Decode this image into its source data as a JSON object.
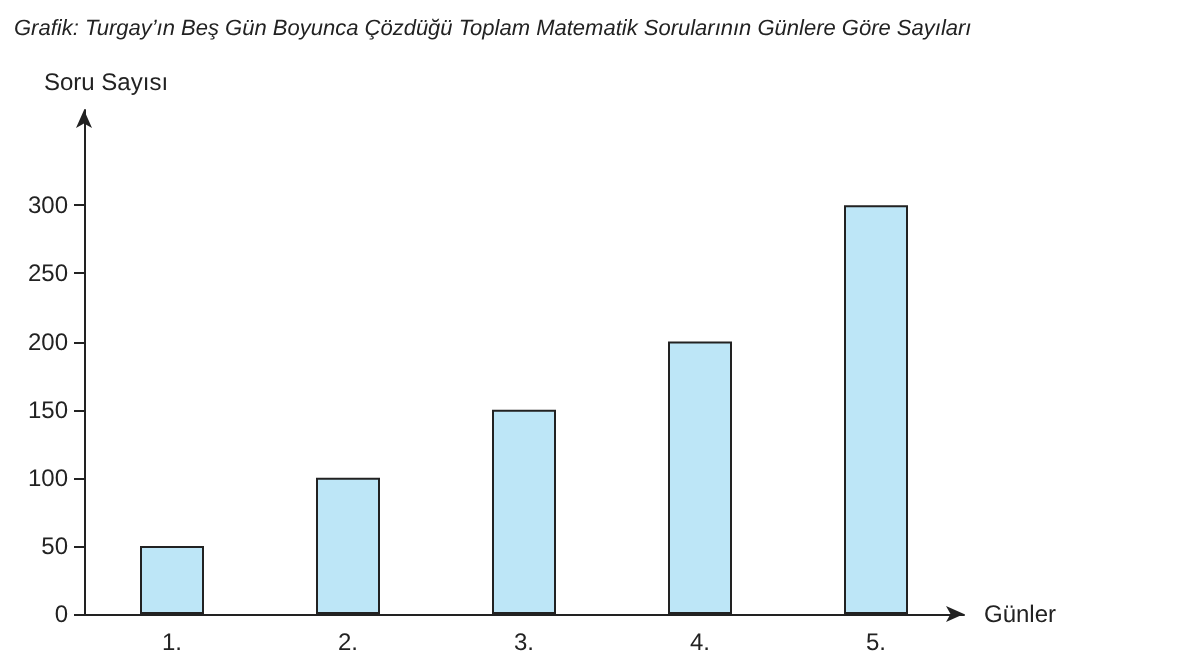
{
  "chart_data": {
    "type": "bar",
    "title": "Grafik: Turgay’ın Beş Gün Boyunca Çözdüğü Toplam Matematik Sorularının Günlere Göre Sayıları",
    "xlabel": "Günler",
    "ylabel": "Soru Sayısı",
    "categories": [
      "1.",
      "2.",
      "3.",
      "4.",
      "5."
    ],
    "values": [
      50,
      100,
      150,
      200,
      300
    ],
    "color": "#bde6f7",
    "ylim": [
      0,
      370
    ],
    "yticks": [
      0,
      50,
      100,
      150,
      200,
      250,
      300
    ],
    "grid": false
  }
}
